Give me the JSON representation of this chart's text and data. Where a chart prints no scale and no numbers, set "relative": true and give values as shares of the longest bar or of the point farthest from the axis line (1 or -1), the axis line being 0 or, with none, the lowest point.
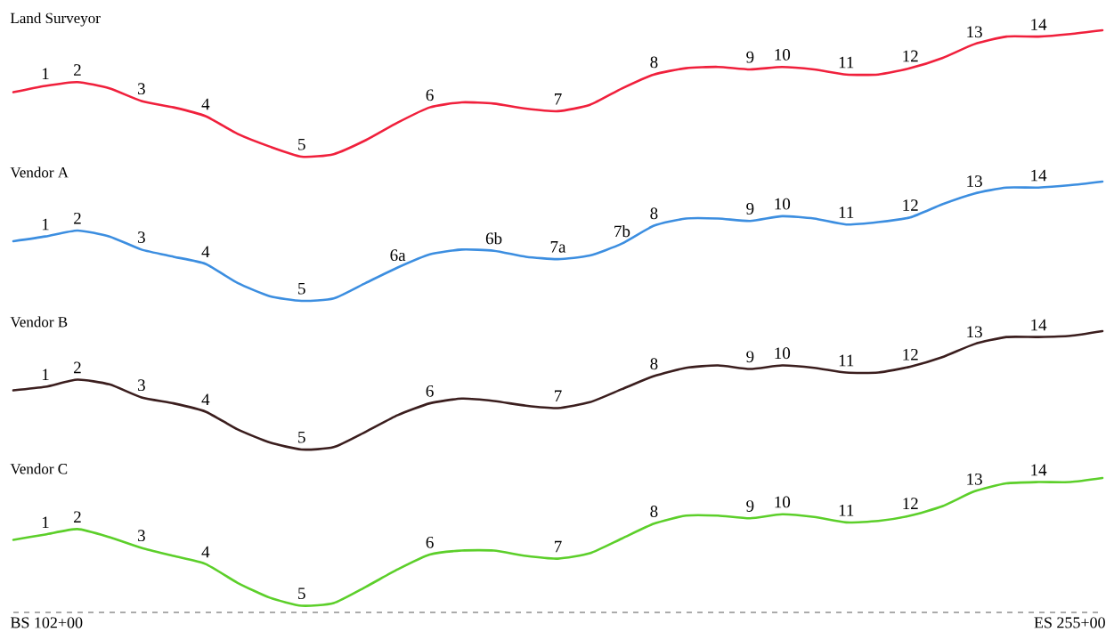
{
  "chart_data": [
    {
      "type": "line",
      "title": "Land Surveyor",
      "relative": true,
      "color": "#f0203c",
      "categories": [
        null,
        "1",
        "2",
        null,
        "3",
        null,
        "4",
        null,
        null,
        "5",
        null,
        null,
        null,
        "6",
        null,
        null,
        null,
        "7",
        null,
        null,
        "8",
        null,
        null,
        "9",
        "10",
        null,
        "11",
        null,
        "12",
        null,
        "13",
        null,
        "14",
        null,
        null
      ],
      "values": [
        0.51,
        0.56,
        0.59,
        0.54,
        0.44,
        0.39,
        0.32,
        0.18,
        0.08,
        0,
        0.02,
        0.13,
        0.27,
        0.39,
        0.43,
        0.42,
        0.38,
        0.36,
        0.41,
        0.54,
        0.65,
        0.7,
        0.71,
        0.69,
        0.71,
        0.69,
        0.65,
        0.65,
        0.7,
        0.78,
        0.89,
        0.95,
        0.95,
        0.97,
        1
      ]
    },
    {
      "type": "line",
      "title": "Vendor A",
      "relative": true,
      "color": "#3c8ee0",
      "categories": [
        null,
        "1",
        "2",
        null,
        "3",
        null,
        "4",
        null,
        null,
        "5",
        null,
        null,
        "6a",
        null,
        null,
        "6b",
        null,
        "7a",
        null,
        "7b",
        "8",
        null,
        null,
        "9",
        "10",
        null,
        "11",
        null,
        "12",
        null,
        "13",
        null,
        "14",
        null,
        null
      ],
      "values": [
        0.5,
        0.54,
        0.59,
        0.54,
        0.43,
        0.37,
        0.31,
        0.15,
        0.04,
        0,
        0.02,
        0.15,
        0.28,
        0.39,
        0.43,
        0.42,
        0.37,
        0.35,
        0.38,
        0.48,
        0.63,
        0.69,
        0.69,
        0.67,
        0.71,
        0.69,
        0.64,
        0.66,
        0.7,
        0.81,
        0.9,
        0.95,
        0.95,
        0.97,
        1
      ]
    },
    {
      "type": "line",
      "title": "Vendor B",
      "relative": true,
      "color": "#3b1e1e",
      "categories": [
        null,
        "1",
        "2",
        null,
        "3",
        null,
        "4",
        null,
        null,
        "5",
        null,
        null,
        null,
        "6",
        null,
        null,
        null,
        "7",
        null,
        null,
        "8",
        null,
        null,
        "9",
        "10",
        null,
        "11",
        null,
        "12",
        null,
        "13",
        null,
        "14",
        null,
        null
      ],
      "values": [
        0.5,
        0.53,
        0.59,
        0.55,
        0.44,
        0.39,
        0.32,
        0.17,
        0.06,
        0,
        0.02,
        0.15,
        0.29,
        0.39,
        0.43,
        0.41,
        0.37,
        0.35,
        0.4,
        0.51,
        0.62,
        0.69,
        0.71,
        0.68,
        0.71,
        0.69,
        0.65,
        0.65,
        0.7,
        0.78,
        0.89,
        0.95,
        0.95,
        0.96,
        1
      ]
    },
    {
      "type": "line",
      "title": "Vendor C",
      "relative": true,
      "color": "#5ccf2a",
      "categories": [
        null,
        "1",
        "2",
        null,
        "3",
        null,
        "4",
        null,
        null,
        "5",
        null,
        null,
        null,
        "6",
        null,
        null,
        null,
        "7",
        null,
        null,
        "8",
        null,
        null,
        "9",
        "10",
        null,
        "11",
        null,
        "12",
        null,
        "13",
        null,
        "14",
        null,
        null
      ],
      "values": [
        0.54,
        0.58,
        0.62,
        0.56,
        0.48,
        0.42,
        0.36,
        0.22,
        0.11,
        0.05,
        0.07,
        0.19,
        0.32,
        0.43,
        0.46,
        0.46,
        0.42,
        0.4,
        0.44,
        0.55,
        0.66,
        0.72,
        0.72,
        0.7,
        0.73,
        0.71,
        0.67,
        0.68,
        0.72,
        0.79,
        0.9,
        0.96,
        0.97,
        0.97,
        1
      ],
      "annotations": [
        "BS 102+00",
        "ES 255+00"
      ]
    }
  ]
}
